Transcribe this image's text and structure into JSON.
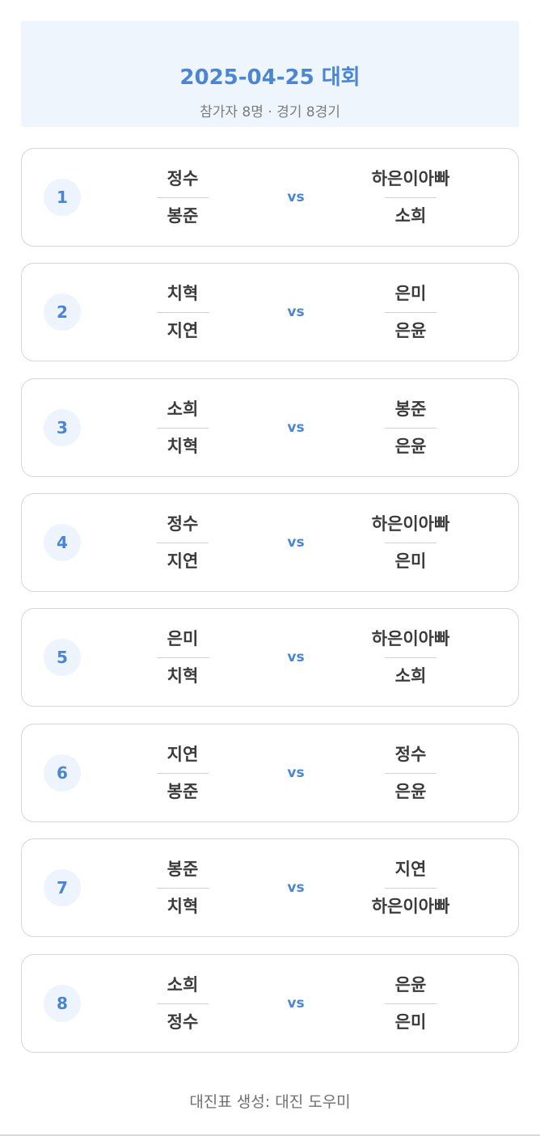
{
  "header": {
    "title": "2025-04-25 대회",
    "subtitle": "참가자 8명 · 경기 8경기"
  },
  "vs_label": "vs",
  "matches": [
    {
      "number": "1",
      "left": [
        "정수",
        "봉준"
      ],
      "right": [
        "하은이아빠",
        "소희"
      ]
    },
    {
      "number": "2",
      "left": [
        "치혁",
        "지연"
      ],
      "right": [
        "은미",
        "은윤"
      ]
    },
    {
      "number": "3",
      "left": [
        "소희",
        "치혁"
      ],
      "right": [
        "봉준",
        "은윤"
      ]
    },
    {
      "number": "4",
      "left": [
        "정수",
        "지연"
      ],
      "right": [
        "하은이아빠",
        "은미"
      ]
    },
    {
      "number": "5",
      "left": [
        "은미",
        "치혁"
      ],
      "right": [
        "하은이아빠",
        "소희"
      ]
    },
    {
      "number": "6",
      "left": [
        "지연",
        "봉준"
      ],
      "right": [
        "정수",
        "은윤"
      ]
    },
    {
      "number": "7",
      "left": [
        "봉준",
        "치혁"
      ],
      "right": [
        "지연",
        "하은이아빠"
      ]
    },
    {
      "number": "8",
      "left": [
        "소희",
        "정수"
      ],
      "right": [
        "은윤",
        "은미"
      ]
    }
  ],
  "footer": {
    "text": "대진표 생성: 대진 도우미"
  },
  "colors": {
    "accent": "#4a86d4",
    "header_bg": "#eef5fd",
    "badge_bg": "#edf4fd",
    "card_border": "#d6d6d6"
  }
}
